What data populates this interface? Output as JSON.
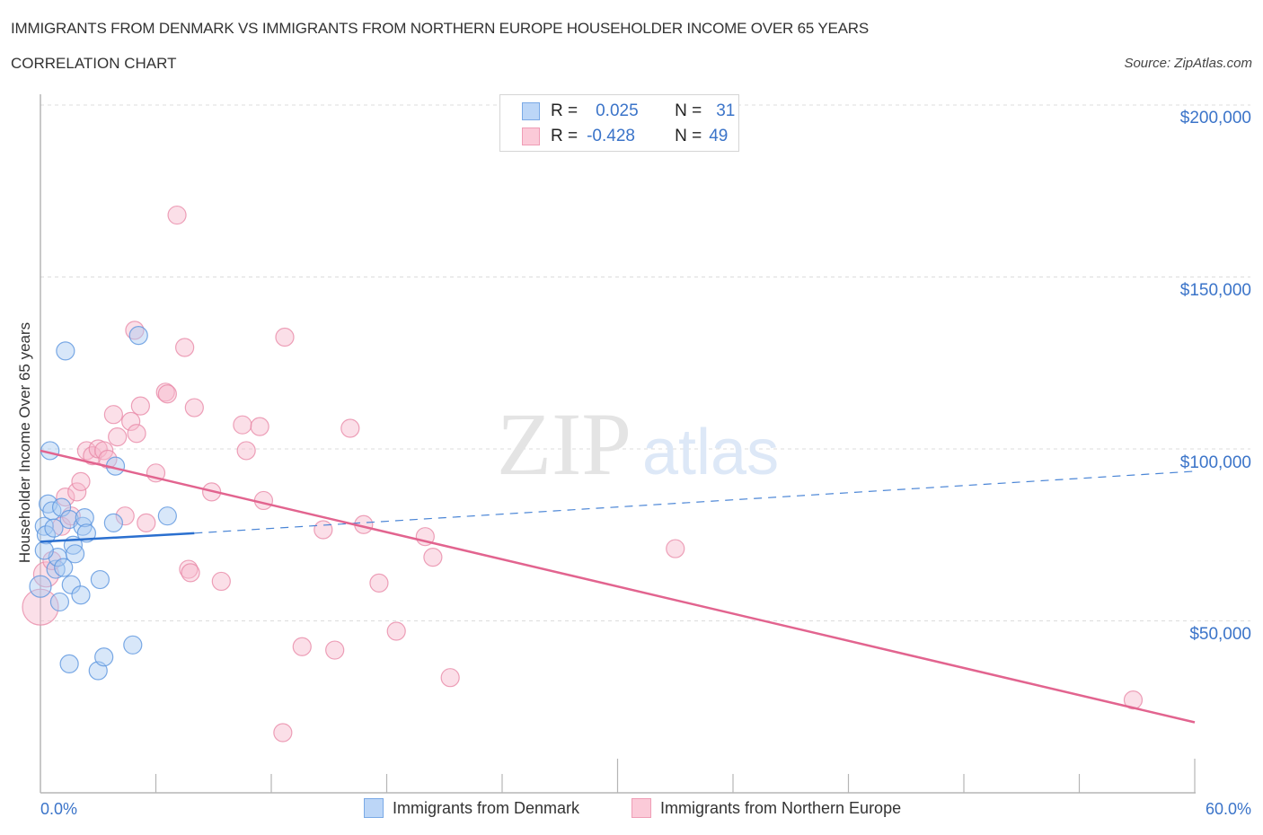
{
  "header": {
    "title": "IMMIGRANTS FROM DENMARK VS IMMIGRANTS FROM NORTHERN EUROPE HOUSEHOLDER INCOME OVER 65 YEARS",
    "subtitle": "CORRELATION CHART",
    "source": "Source: ZipAtlas.com"
  },
  "watermark": {
    "zip": "ZIP",
    "atlas": "atlas"
  },
  "legend_top": {
    "rows": [
      {
        "r_label": "R =",
        "r_value": "0.025",
        "n_label": "N =",
        "n_value": "31",
        "color": "#a9c9f2"
      },
      {
        "r_label": "R =",
        "r_value": "-0.428",
        "n_label": "N =",
        "n_value": "49",
        "color": "#f7b8cb"
      }
    ]
  },
  "legend_bottom": {
    "items": [
      {
        "label": "Immigrants from Denmark",
        "color": "#a9c9f2"
      },
      {
        "label": "Immigrants from Northern Europe",
        "color": "#f7b8cb"
      }
    ]
  },
  "axes": {
    "y_label": "Householder Income Over 65 years",
    "y_ticks": [
      "$200,000",
      "$150,000",
      "$100,000",
      "$50,000"
    ],
    "x_ticks": [
      "0.0%",
      "60.0%"
    ]
  },
  "chart_data": {
    "type": "scatter",
    "title": "Immigrants from Denmark vs Immigrants from Northern Europe Householder Income Over 65 years",
    "subtitle": "Correlation Chart",
    "xlabel": "",
    "ylabel": "Householder Income Over 65 years",
    "xlim": [
      0,
      60
    ],
    "ylim": [
      0,
      205000
    ],
    "x_tick_labels": [
      "0.0%",
      "60.0%"
    ],
    "y_tick_values": [
      50000,
      100000,
      150000,
      200000
    ],
    "grid": true,
    "legend_position": "bottom",
    "series": [
      {
        "name": "Immigrants from Denmark",
        "color": "#a9c9f2",
        "stroke": "#5b95de",
        "R": 0.025,
        "N": 31,
        "trend": {
          "x": [
            0,
            8
          ],
          "y": [
            73000,
            75500
          ],
          "dashed_extension_to": [
            60,
            93500
          ]
        },
        "points": [
          {
            "x": 0.0,
            "y": 60000,
            "r": 12
          },
          {
            "x": 0.2,
            "y": 77500
          },
          {
            "x": 0.3,
            "y": 75000
          },
          {
            "x": 0.4,
            "y": 84000
          },
          {
            "x": 0.5,
            "y": 99500
          },
          {
            "x": 0.6,
            "y": 82000
          },
          {
            "x": 0.7,
            "y": 77000
          },
          {
            "x": 0.8,
            "y": 65000
          },
          {
            "x": 0.9,
            "y": 68500
          },
          {
            "x": 1.0,
            "y": 55500
          },
          {
            "x": 1.1,
            "y": 83000
          },
          {
            "x": 1.2,
            "y": 65500
          },
          {
            "x": 1.3,
            "y": 128500
          },
          {
            "x": 1.5,
            "y": 79500
          },
          {
            "x": 1.5,
            "y": 37500
          },
          {
            "x": 1.6,
            "y": 60500
          },
          {
            "x": 1.7,
            "y": 72000
          },
          {
            "x": 1.8,
            "y": 69500
          },
          {
            "x": 2.1,
            "y": 57500
          },
          {
            "x": 2.2,
            "y": 77500
          },
          {
            "x": 2.3,
            "y": 80000
          },
          {
            "x": 2.4,
            "y": 75500
          },
          {
            "x": 3.0,
            "y": 35500
          },
          {
            "x": 3.1,
            "y": 62000
          },
          {
            "x": 3.3,
            "y": 39500
          },
          {
            "x": 3.8,
            "y": 78500
          },
          {
            "x": 3.9,
            "y": 95000
          },
          {
            "x": 4.8,
            "y": 43000
          },
          {
            "x": 5.1,
            "y": 133000
          },
          {
            "x": 6.6,
            "y": 80500
          },
          {
            "x": 0.2,
            "y": 70500
          }
        ]
      },
      {
        "name": "Immigrants from Northern Europe",
        "color": "#f7b8cb",
        "stroke": "#e98aa7",
        "R": -0.428,
        "N": 49,
        "trend": {
          "x": [
            0,
            60
          ],
          "y": [
            99500,
            20500
          ]
        },
        "points": [
          {
            "x": 0.0,
            "y": 54000,
            "r": 20
          },
          {
            "x": 0.3,
            "y": 63500,
            "r": 14
          },
          {
            "x": 0.6,
            "y": 67500
          },
          {
            "x": 1.1,
            "y": 77500
          },
          {
            "x": 1.3,
            "y": 86000
          },
          {
            "x": 1.6,
            "y": 80500
          },
          {
            "x": 1.9,
            "y": 87500
          },
          {
            "x": 2.1,
            "y": 90500
          },
          {
            "x": 2.4,
            "y": 99500
          },
          {
            "x": 2.7,
            "y": 98000
          },
          {
            "x": 3.0,
            "y": 100000
          },
          {
            "x": 3.3,
            "y": 99500
          },
          {
            "x": 3.5,
            "y": 97000
          },
          {
            "x": 3.8,
            "y": 110000
          },
          {
            "x": 4.0,
            "y": 103500
          },
          {
            "x": 4.4,
            "y": 80500
          },
          {
            "x": 4.7,
            "y": 108000
          },
          {
            "x": 4.9,
            "y": 134500
          },
          {
            "x": 5.0,
            "y": 104500
          },
          {
            "x": 5.2,
            "y": 112500
          },
          {
            "x": 5.5,
            "y": 78500
          },
          {
            "x": 6.0,
            "y": 93000
          },
          {
            "x": 6.5,
            "y": 116500
          },
          {
            "x": 6.6,
            "y": 116000
          },
          {
            "x": 7.1,
            "y": 168000
          },
          {
            "x": 7.5,
            "y": 129500
          },
          {
            "x": 7.7,
            "y": 65000
          },
          {
            "x": 7.8,
            "y": 64000
          },
          {
            "x": 8.0,
            "y": 112000
          },
          {
            "x": 8.9,
            "y": 87500
          },
          {
            "x": 9.4,
            "y": 61500
          },
          {
            "x": 10.5,
            "y": 107000
          },
          {
            "x": 10.7,
            "y": 99500
          },
          {
            "x": 11.4,
            "y": 106500
          },
          {
            "x": 11.6,
            "y": 85000
          },
          {
            "x": 12.6,
            "y": 17500
          },
          {
            "x": 12.7,
            "y": 132500
          },
          {
            "x": 13.6,
            "y": 42500
          },
          {
            "x": 14.7,
            "y": 76500
          },
          {
            "x": 15.3,
            "y": 41500
          },
          {
            "x": 16.1,
            "y": 106000
          },
          {
            "x": 16.8,
            "y": 78000
          },
          {
            "x": 17.6,
            "y": 61000
          },
          {
            "x": 18.5,
            "y": 47000
          },
          {
            "x": 20.0,
            "y": 74500
          },
          {
            "x": 20.4,
            "y": 68500
          },
          {
            "x": 21.3,
            "y": 33500
          },
          {
            "x": 33.0,
            "y": 71000
          },
          {
            "x": 56.8,
            "y": 27000
          }
        ]
      }
    ]
  }
}
